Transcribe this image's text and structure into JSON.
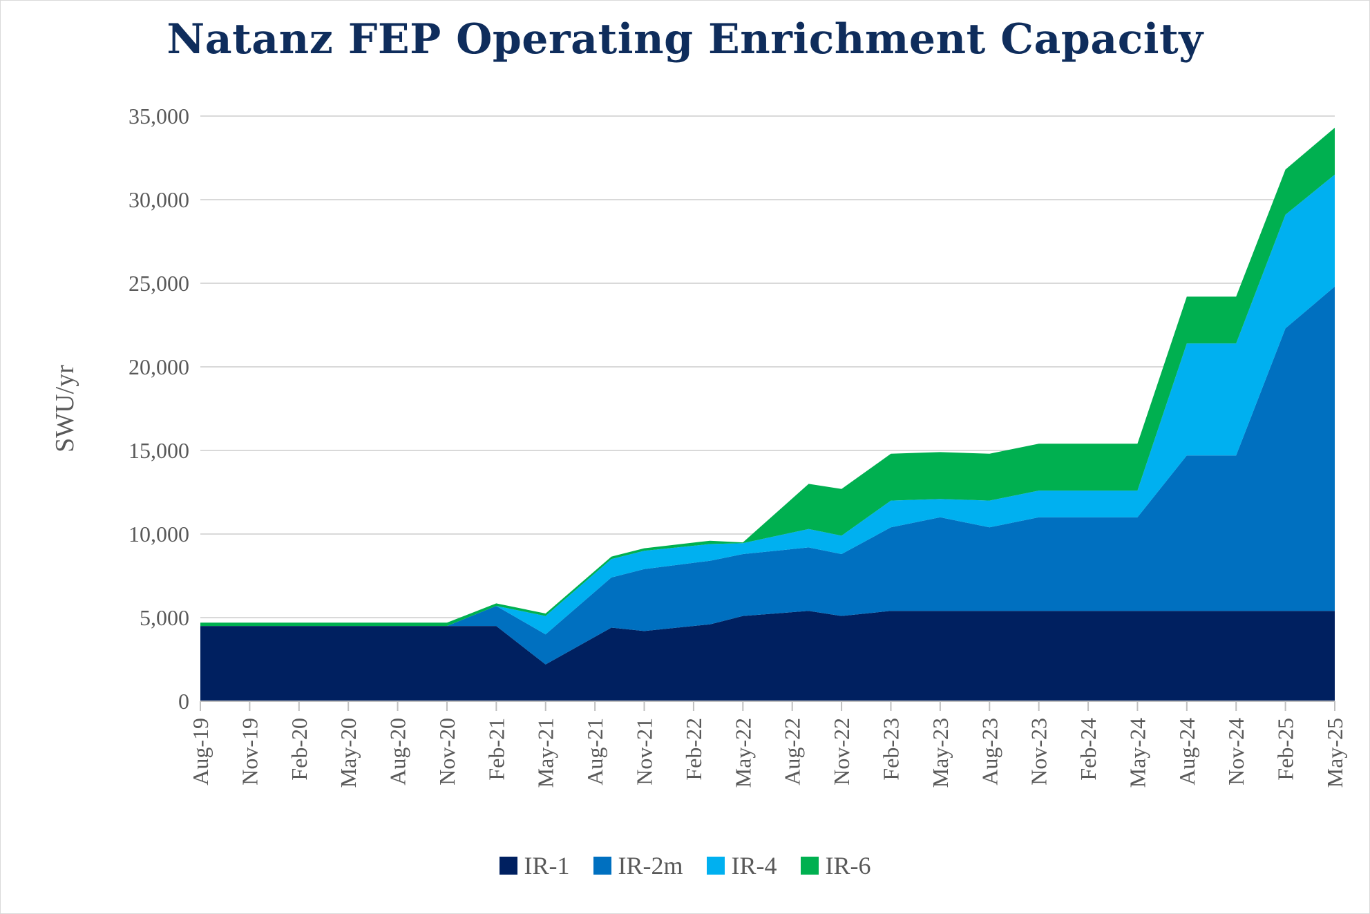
{
  "chart_data": {
    "type": "area",
    "stacked": true,
    "title": "Natanz FEP Operating Enrichment Capacity",
    "xlabel": "",
    "ylabel": "SWU/yr",
    "ylim": [
      0,
      35000
    ],
    "yticks": [
      "0",
      "5,000",
      "10,000",
      "15,000",
      "20,000",
      "25,000",
      "30,000",
      "35,000"
    ],
    "grid": true,
    "legend_position": "bottom",
    "x_tick_labels": [
      "Aug-19",
      "Nov-19",
      "Feb-20",
      "May-20",
      "Aug-20",
      "Nov-20",
      "Feb-21",
      "May-21",
      "Aug-21",
      "Nov-21",
      "Feb-22",
      "May-22",
      "Aug-22",
      "Nov-22",
      "Feb-23",
      "May-23",
      "Aug-23",
      "Nov-23",
      "Feb-24",
      "May-24",
      "Aug-24",
      "Nov-24",
      "Feb-25",
      "May-25"
    ],
    "x": [
      "2019-08",
      "2020-11",
      "2021-02",
      "2021-05",
      "2021-09",
      "2021-11",
      "2022-03",
      "2022-05",
      "2022-09",
      "2022-11",
      "2023-02",
      "2023-05",
      "2023-08",
      "2023-11",
      "2024-05",
      "2024-08",
      "2024-11",
      "2025-02",
      "2025-05"
    ],
    "series": [
      {
        "name": "IR-1",
        "color": "#002060",
        "values": [
          4500,
          4500,
          4500,
          2200,
          4400,
          4200,
          4600,
          5100,
          5400,
          5100,
          5400,
          5400,
          5400,
          5400,
          5400,
          5400,
          5400,
          5400,
          5400
        ]
      },
      {
        "name": "IR-2m",
        "color": "#0070c0",
        "values": [
          0,
          0,
          1200,
          1800,
          3000,
          3700,
          3800,
          3700,
          3800,
          3700,
          5000,
          5600,
          5000,
          5600,
          5600,
          9300,
          9300,
          16900,
          19400
        ]
      },
      {
        "name": "IR-4",
        "color": "#00b0f0",
        "values": [
          0,
          0,
          0,
          1100,
          1100,
          1100,
          1000,
          650,
          1100,
          1100,
          1600,
          1100,
          1600,
          1600,
          1600,
          6700,
          6700,
          6800,
          6700
        ]
      },
      {
        "name": "IR-6",
        "color": "#00b050",
        "values": [
          200,
          200,
          150,
          150,
          150,
          150,
          200,
          50,
          2700,
          2800,
          2800,
          2800,
          2800,
          2800,
          2800,
          2800,
          2800,
          2700,
          2800
        ]
      }
    ]
  }
}
